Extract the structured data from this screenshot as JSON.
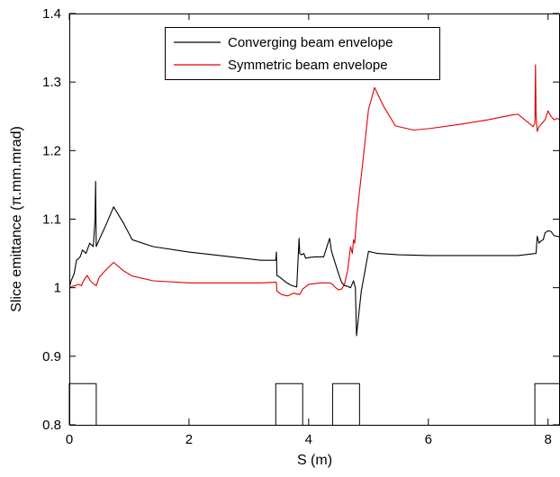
{
  "chart_data": {
    "type": "line",
    "title": "",
    "xlabel": "S (m)",
    "ylabel": "Slice emittance (π.mm.mrad)",
    "xlim": [
      0,
      8.2
    ],
    "ylim": [
      0.8,
      1.4
    ],
    "xticks": [
      0,
      2,
      4,
      6,
      8
    ],
    "yticks": [
      0.8,
      0.9,
      1,
      1.1,
      1.2,
      1.3,
      1.4
    ],
    "ytick_labels": [
      "0.8",
      "0.9",
      "1",
      "1.1",
      "1.2",
      "1.3",
      "1.4"
    ],
    "grid": false,
    "legend_position": "top-center",
    "series": [
      {
        "name": "Converging beam envelope",
        "color": "#000000",
        "x": [
          0.0,
          0.03,
          0.08,
          0.12,
          0.18,
          0.22,
          0.28,
          0.34,
          0.4,
          0.43,
          0.44,
          0.45,
          0.5,
          0.62,
          0.74,
          0.9,
          1.05,
          1.4,
          2.0,
          2.6,
          3.2,
          3.45,
          3.46,
          3.47,
          3.52,
          3.62,
          3.72,
          3.8,
          3.84,
          3.85,
          3.88,
          3.92,
          3.95,
          4.0,
          4.1,
          4.25,
          4.35,
          4.38,
          4.4,
          4.5,
          4.55,
          4.6,
          4.65,
          4.7,
          4.75,
          4.78,
          4.8,
          4.83,
          4.88,
          5.0,
          5.15,
          5.5,
          6.0,
          6.5,
          7.0,
          7.5,
          7.8,
          7.82,
          7.85,
          7.88,
          7.92,
          7.95,
          8.0,
          8.05,
          8.1,
          8.15,
          8.2
        ],
        "y": [
          1.0,
          1.01,
          1.02,
          1.04,
          1.045,
          1.055,
          1.05,
          1.065,
          1.06,
          1.1,
          1.155,
          1.06,
          1.07,
          1.093,
          1.118,
          1.095,
          1.07,
          1.06,
          1.052,
          1.046,
          1.04,
          1.04,
          1.052,
          1.018,
          1.015,
          1.008,
          1.003,
          1.001,
          1.072,
          1.05,
          1.048,
          1.05,
          1.043,
          1.044,
          1.045,
          1.045,
          1.072,
          1.054,
          1.048,
          1.02,
          1.008,
          1.003,
          1.002,
          1.0,
          1.01,
          1.0,
          0.93,
          0.955,
          0.995,
          1.053,
          1.05,
          1.048,
          1.047,
          1.047,
          1.047,
          1.047,
          1.05,
          1.075,
          1.065,
          1.068,
          1.07,
          1.08,
          1.083,
          1.082,
          1.076,
          1.075,
          1.074
        ]
      },
      {
        "name": "Symmetric beam envelope",
        "color": "#e00000",
        "x": [
          0.0,
          0.05,
          0.1,
          0.15,
          0.2,
          0.25,
          0.3,
          0.35,
          0.4,
          0.45,
          0.5,
          0.6,
          0.74,
          0.9,
          1.05,
          1.4,
          2.0,
          2.6,
          3.2,
          3.45,
          3.46,
          3.47,
          3.55,
          3.65,
          3.75,
          3.85,
          3.9,
          4.0,
          4.2,
          4.35,
          4.4,
          4.45,
          4.5,
          4.55,
          4.6,
          4.65,
          4.7,
          4.73,
          4.75,
          4.77,
          4.8,
          4.85,
          4.9,
          4.95,
          5.0,
          5.1,
          5.25,
          5.45,
          5.75,
          6.0,
          6.5,
          7.0,
          7.4,
          7.5,
          7.75,
          7.78,
          7.79,
          7.8,
          7.82,
          7.85,
          7.9,
          7.95,
          8.0,
          8.05,
          8.1,
          8.15,
          8.2
        ],
        "y": [
          1.0,
          1.002,
          1.003,
          1.005,
          1.003,
          1.012,
          1.018,
          1.01,
          1.006,
          1.003,
          1.015,
          1.025,
          1.037,
          1.025,
          1.017,
          1.01,
          1.007,
          1.007,
          1.007,
          1.008,
          1.008,
          0.995,
          0.99,
          0.988,
          0.992,
          0.99,
          0.998,
          1.005,
          1.007,
          1.007,
          1.005,
          1.0,
          0.997,
          0.998,
          1.005,
          1.025,
          1.06,
          1.05,
          1.07,
          1.065,
          1.1,
          1.14,
          1.18,
          1.22,
          1.26,
          1.292,
          1.265,
          1.236,
          1.23,
          1.232,
          1.238,
          1.245,
          1.252,
          1.253,
          1.235,
          1.24,
          1.325,
          1.25,
          1.228,
          1.235,
          1.24,
          1.245,
          1.258,
          1.25,
          1.245,
          1.247,
          1.245
        ]
      }
    ],
    "lattice_markers": {
      "color": "#000000",
      "baseline": 0.8,
      "top": 0.86,
      "segments": [
        [
          0,
          0.45
        ],
        [
          3.45,
          3.9
        ],
        [
          4.4,
          4.85
        ],
        [
          7.78,
          8.2
        ]
      ]
    }
  }
}
